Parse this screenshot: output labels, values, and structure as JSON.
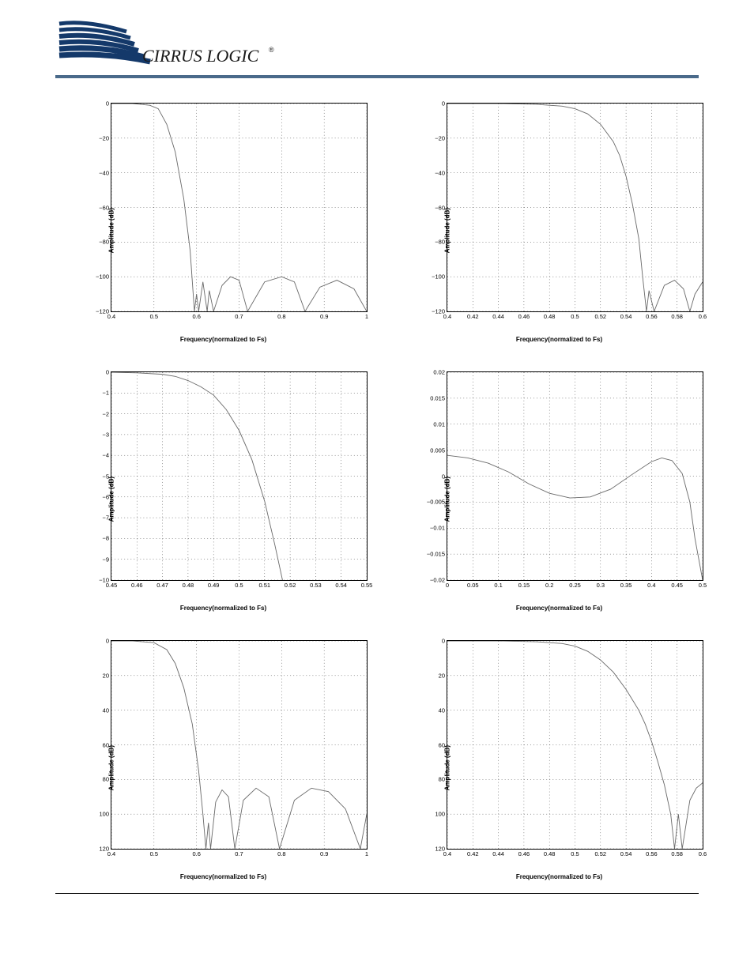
{
  "branding": {
    "company": "CIRRUS LOGIC",
    "logo_stripe_color": "#14396a",
    "logo_text_color": "#1a1a1a",
    "header_rule_color": "#4a6a8a"
  },
  "common": {
    "ylabel": "Amplitude (dB)",
    "xlabel": "Frequency(normalized to Fs)",
    "ylabel_fontsize": 8,
    "xlabel_fontsize": 8,
    "tick_fontsize": 7.5,
    "line_color": "#6a6a6a",
    "grid_color": "#000000",
    "grid_dash": "1 3",
    "background_color": "#ffffff",
    "border_color": "#000000",
    "line_width": 0.9
  },
  "charts": [
    {
      "id": "c1",
      "type": "line",
      "xlim": [
        0.4,
        1.0
      ],
      "ylim": [
        -120,
        0
      ],
      "xticks": [
        0.4,
        0.5,
        0.6,
        0.7,
        0.8,
        0.9,
        1.0
      ],
      "yticks": [
        -120,
        -100,
        -80,
        -60,
        -40,
        -20,
        0
      ],
      "ytick_labels": [
        "−120",
        "−100",
        "−80",
        "−60",
        "−40",
        "−20",
        "0"
      ],
      "xtick_labels": [
        "0.4",
        "0.5",
        "0.6",
        "0.7",
        "0.8",
        "0.9",
        "1"
      ],
      "series": [
        [
          0.4,
          0
        ],
        [
          0.45,
          0
        ],
        [
          0.49,
          -1
        ],
        [
          0.51,
          -3
        ],
        [
          0.53,
          -12
        ],
        [
          0.55,
          -28
        ],
        [
          0.57,
          -55
        ],
        [
          0.585,
          -85
        ],
        [
          0.595,
          -120
        ],
        [
          0.6,
          -110
        ],
        [
          0.605,
          -120
        ],
        [
          0.615,
          -103
        ],
        [
          0.625,
          -120
        ],
        [
          0.63,
          -108
        ],
        [
          0.64,
          -120
        ],
        [
          0.66,
          -105
        ],
        [
          0.68,
          -100
        ],
        [
          0.7,
          -102
        ],
        [
          0.72,
          -120
        ],
        [
          0.76,
          -103
        ],
        [
          0.8,
          -100
        ],
        [
          0.83,
          -103
        ],
        [
          0.855,
          -120
        ],
        [
          0.89,
          -106
        ],
        [
          0.93,
          -102
        ],
        [
          0.97,
          -107
        ],
        [
          1.0,
          -120
        ]
      ]
    },
    {
      "id": "c2",
      "type": "line",
      "xlim": [
        0.4,
        0.6
      ],
      "ylim": [
        -120,
        0
      ],
      "xticks": [
        0.4,
        0.42,
        0.44,
        0.46,
        0.48,
        0.5,
        0.52,
        0.54,
        0.56,
        0.58,
        0.6
      ],
      "yticks": [
        -120,
        -100,
        -80,
        -60,
        -40,
        -20,
        0
      ],
      "ytick_labels": [
        "−120",
        "−100",
        "−80",
        "−60",
        "−40",
        "−20",
        "0"
      ],
      "xtick_labels": [
        "0.4",
        "0.42",
        "0.44",
        "0.46",
        "0.48",
        "0.5",
        "0.52",
        "0.54",
        "0.56",
        "0.58",
        "0.6"
      ],
      "series": [
        [
          0.4,
          0
        ],
        [
          0.44,
          0
        ],
        [
          0.47,
          -0.5
        ],
        [
          0.49,
          -1.5
        ],
        [
          0.5,
          -3
        ],
        [
          0.51,
          -6
        ],
        [
          0.52,
          -12
        ],
        [
          0.53,
          -22
        ],
        [
          0.535,
          -30
        ],
        [
          0.54,
          -42
        ],
        [
          0.545,
          -58
        ],
        [
          0.55,
          -78
        ],
        [
          0.553,
          -100
        ],
        [
          0.556,
          -120
        ],
        [
          0.558,
          -108
        ],
        [
          0.562,
          -120
        ],
        [
          0.57,
          -105
        ],
        [
          0.578,
          -102
        ],
        [
          0.585,
          -107
        ],
        [
          0.59,
          -120
        ],
        [
          0.594,
          -110
        ],
        [
          0.6,
          -103
        ]
      ]
    },
    {
      "id": "c3",
      "type": "line",
      "xlim": [
        0.45,
        0.55
      ],
      "ylim": [
        -10,
        0
      ],
      "xticks": [
        0.45,
        0.46,
        0.47,
        0.48,
        0.49,
        0.5,
        0.51,
        0.52,
        0.53,
        0.54,
        0.55
      ],
      "yticks": [
        -10,
        -9,
        -8,
        -7,
        -6,
        -5,
        -4,
        -3,
        -2,
        -1,
        0
      ],
      "ytick_labels": [
        "−10",
        "−9",
        "−8",
        "−7",
        "−6",
        "−5",
        "−4",
        "−3",
        "−2",
        "−1",
        "0"
      ],
      "xtick_labels": [
        "0.45",
        "0.46",
        "0.47",
        "0.48",
        "0.49",
        "0.5",
        "0.51",
        "0.52",
        "0.53",
        "0.54",
        "0.55"
      ],
      "series": [
        [
          0.45,
          0
        ],
        [
          0.46,
          -0.03
        ],
        [
          0.47,
          -0.1
        ],
        [
          0.475,
          -0.2
        ],
        [
          0.48,
          -0.4
        ],
        [
          0.485,
          -0.7
        ],
        [
          0.49,
          -1.1
        ],
        [
          0.495,
          -1.8
        ],
        [
          0.5,
          -2.8
        ],
        [
          0.505,
          -4.2
        ],
        [
          0.51,
          -6.2
        ],
        [
          0.514,
          -8.3
        ],
        [
          0.517,
          -10
        ]
      ]
    },
    {
      "id": "c4",
      "type": "line",
      "xlim": [
        0,
        0.5
      ],
      "ylim": [
        -0.02,
        0.02
      ],
      "xticks": [
        0,
        0.05,
        0.1,
        0.15,
        0.2,
        0.25,
        0.3,
        0.35,
        0.4,
        0.45,
        0.5
      ],
      "yticks": [
        -0.02,
        -0.015,
        -0.01,
        -0.005,
        0,
        0.005,
        0.01,
        0.015,
        0.02
      ],
      "ytick_labels": [
        "−0.02",
        "−0.015",
        "−0.01",
        "−0.005",
        "0",
        "0.005",
        "0.01",
        "0.015",
        "0.02"
      ],
      "xtick_labels": [
        "0",
        "0.05",
        "0.1",
        "0.15",
        "0.2",
        "0.25",
        "0.3",
        "0.35",
        "0.4",
        "0.45",
        "0.5"
      ],
      "series": [
        [
          0,
          0.004
        ],
        [
          0.04,
          0.0035
        ],
        [
          0.08,
          0.0025
        ],
        [
          0.12,
          0.0008
        ],
        [
          0.16,
          -0.0015
        ],
        [
          0.2,
          -0.0033
        ],
        [
          0.24,
          -0.0042
        ],
        [
          0.28,
          -0.004
        ],
        [
          0.32,
          -0.0025
        ],
        [
          0.36,
          0.0002
        ],
        [
          0.4,
          0.0028
        ],
        [
          0.42,
          0.0035
        ],
        [
          0.44,
          0.003
        ],
        [
          0.46,
          0.0005
        ],
        [
          0.475,
          -0.005
        ],
        [
          0.485,
          -0.012
        ],
        [
          0.5,
          -0.02
        ]
      ]
    },
    {
      "id": "c5",
      "type": "line",
      "xlim": [
        0.4,
        1.0
      ],
      "ylim_inverted": true,
      "ylim": [
        0,
        120
      ],
      "xticks": [
        0.4,
        0.5,
        0.6,
        0.7,
        0.8,
        0.9,
        1.0
      ],
      "yticks": [
        0,
        20,
        40,
        60,
        80,
        100,
        120
      ],
      "ytick_labels": [
        "0",
        "20",
        "40",
        "60",
        "80",
        "100",
        "120"
      ],
      "xtick_labels": [
        "0.4",
        "0.5",
        "0.6",
        "0.7",
        "0.8",
        "0.9",
        "1"
      ],
      "series": [
        [
          0.4,
          0
        ],
        [
          0.45,
          0
        ],
        [
          0.5,
          1
        ],
        [
          0.53,
          5
        ],
        [
          0.55,
          13
        ],
        [
          0.57,
          27
        ],
        [
          0.59,
          48
        ],
        [
          0.605,
          75
        ],
        [
          0.615,
          100
        ],
        [
          0.622,
          120
        ],
        [
          0.628,
          105
        ],
        [
          0.633,
          120
        ],
        [
          0.645,
          93
        ],
        [
          0.66,
          86
        ],
        [
          0.675,
          90
        ],
        [
          0.69,
          120
        ],
        [
          0.71,
          92
        ],
        [
          0.74,
          85
        ],
        [
          0.77,
          90
        ],
        [
          0.795,
          120
        ],
        [
          0.83,
          92
        ],
        [
          0.87,
          85
        ],
        [
          0.91,
          87
        ],
        [
          0.95,
          97
        ],
        [
          0.985,
          120
        ],
        [
          1.0,
          100
        ]
      ]
    },
    {
      "id": "c6",
      "type": "line",
      "xlim": [
        0.4,
        0.6
      ],
      "ylim_inverted": true,
      "ylim": [
        0,
        120
      ],
      "xticks": [
        0.4,
        0.42,
        0.44,
        0.46,
        0.48,
        0.5,
        0.52,
        0.54,
        0.56,
        0.58,
        0.6
      ],
      "yticks": [
        0,
        20,
        40,
        60,
        80,
        100,
        120
      ],
      "ytick_labels": [
        "0",
        "20",
        "40",
        "60",
        "80",
        "100",
        "120"
      ],
      "xtick_labels": [
        "0.4",
        "0.42",
        "0.44",
        "0.46",
        "0.48",
        "0.5",
        "0.52",
        "0.54",
        "0.56",
        "0.58",
        "0.6"
      ],
      "series": [
        [
          0.4,
          0
        ],
        [
          0.44,
          0
        ],
        [
          0.47,
          0.5
        ],
        [
          0.49,
          1.5
        ],
        [
          0.5,
          3
        ],
        [
          0.51,
          6
        ],
        [
          0.52,
          11
        ],
        [
          0.53,
          18
        ],
        [
          0.54,
          28
        ],
        [
          0.55,
          40
        ],
        [
          0.555,
          48
        ],
        [
          0.56,
          58
        ],
        [
          0.565,
          70
        ],
        [
          0.57,
          83
        ],
        [
          0.575,
          100
        ],
        [
          0.578,
          120
        ],
        [
          0.581,
          100
        ],
        [
          0.584,
          120
        ],
        [
          0.59,
          92
        ],
        [
          0.595,
          85
        ],
        [
          0.6,
          82
        ]
      ]
    }
  ]
}
